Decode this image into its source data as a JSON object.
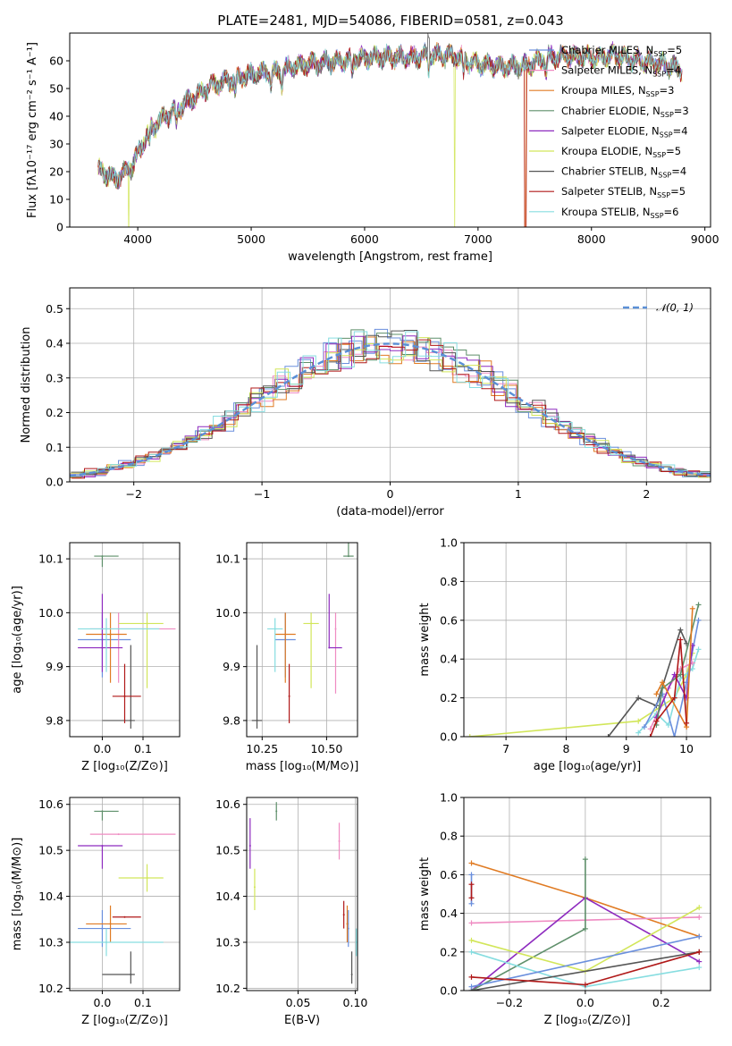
{
  "figure_title": "PLATE=2481, MJD=54086, FIBERID=0581, z=0.043",
  "colors": {
    "chabrier_miles": "#6a8fdd",
    "salpeter_miles": "#ef8bc2",
    "kroupa_miles": "#e07b23",
    "chabrier_elodie": "#5e8f6a",
    "salpeter_elodie": "#8e2bbf",
    "kroupa_elodie": "#d2e65a",
    "chabrier_stelib": "#555555",
    "salpeter_stelib": "#b01818",
    "kroupa_stelib": "#86dde0",
    "normal": "#5a8fd6"
  },
  "chart_data": [
    {
      "id": "spectrum",
      "type": "line",
      "title": "PLATE=2481, MJD=54086, FIBERID=0581, z=0.043",
      "xlabel": "wavelength [Angstrom, rest frame]",
      "ylabel": "Flux [fλ10⁻¹⁷ erg cm⁻² s⁻¹ A⁻¹]",
      "xlim": [
        3400,
        9050
      ],
      "ylim": [
        0,
        70
      ],
      "xticks": [
        4000,
        5000,
        6000,
        7000,
        8000,
        9000
      ],
      "yticks": [
        0,
        10,
        20,
        30,
        40,
        50,
        60
      ],
      "legend_position": "upper-right",
      "series": [
        {
          "name": "Chabrier MILES, N_SSP=5",
          "color": "#6a8fdd"
        },
        {
          "name": "Salpeter MILES, N_SSP=4",
          "color": "#ef8bc2"
        },
        {
          "name": "Kroupa MILES, N_SSP=3",
          "color": "#e07b23"
        },
        {
          "name": "Chabrier ELODIE, N_SSP=3",
          "color": "#5e8f6a"
        },
        {
          "name": "Salpeter ELODIE, N_SSP=4",
          "color": "#8e2bbf"
        },
        {
          "name": "Kroupa ELODIE, N_SSP=5",
          "color": "#d2e65a"
        },
        {
          "name": "Chabrier STELIB, N_SSP=4",
          "color": "#555555"
        },
        {
          "name": "Salpeter STELIB, N_SSP=5",
          "color": "#b01818"
        },
        {
          "name": "Kroupa STELIB, N_SSP=6",
          "color": "#86dde0"
        }
      ],
      "continuum": {
        "x": [
          3650,
          3800,
          3950,
          4100,
          4250,
          4400,
          4600,
          4800,
          5000,
          5200,
          5400,
          5600,
          5800,
          6000,
          6200,
          6400,
          6600,
          6800,
          7000,
          7200,
          7400,
          7600,
          7800,
          8000,
          8200,
          8400,
          8600,
          8800
        ],
        "y": [
          21,
          17,
          22,
          35,
          40,
          44,
          50,
          53,
          55,
          56,
          58,
          59,
          60,
          61,
          61.5,
          61,
          62,
          61.5,
          59,
          58,
          58,
          61,
          62,
          61,
          62,
          60,
          59,
          57
        ]
      },
      "cutoffs": {
        "kroupa_elodie_start": 3920,
        "kroupa_elodie_end": 6790,
        "salpeter_stelib_end": 7420
      }
    },
    {
      "id": "residuals",
      "type": "step",
      "xlabel": "(data-model)/error",
      "ylabel": "Normed distribution",
      "xlim": [
        -2.5,
        2.5
      ],
      "ylim": [
        0,
        0.56
      ],
      "xticks": [
        -2,
        -1,
        0,
        1,
        2
      ],
      "yticks": [
        0.0,
        0.1,
        0.2,
        0.3,
        0.4,
        0.5
      ],
      "legend_label": "𝒩(0, 1)",
      "legend_position": "upper-right",
      "curve": "normal(0,1)"
    },
    {
      "id": "age_vs_Z",
      "type": "errorbar",
      "xlabel": "Z [log₁₀(Z/Z⊙)]",
      "ylabel": "age  [log₁₀(age/yr)]",
      "xlim": [
        -0.08,
        0.19
      ],
      "ylim": [
        9.77,
        10.13
      ],
      "xticks": [
        0.0,
        0.1
      ],
      "yticks": [
        9.8,
        9.9,
        10.0,
        10.1
      ],
      "points": [
        {
          "x": 0.0,
          "y": 9.95,
          "xe": [
            0.06,
            0.07
          ],
          "ye": [
            0.07,
            0.05
          ],
          "color": "#6a8fdd"
        },
        {
          "x": 0.04,
          "y": 9.97,
          "xe": [
            0.07,
            0.14
          ],
          "ye": [
            0.1,
            0.03
          ],
          "color": "#ef8bc2"
        },
        {
          "x": 0.02,
          "y": 9.96,
          "xe": [
            0.06,
            0.04
          ],
          "ye": [
            0.09,
            0.04
          ],
          "color": "#e07b23"
        },
        {
          "x": 0.0,
          "y": 10.105,
          "xe": [
            0.02,
            0.04
          ],
          "ye": [
            0.02,
            0.0
          ],
          "color": "#5e8f6a"
        },
        {
          "x": 0.0,
          "y": 9.935,
          "xe": [
            0.06,
            0.05
          ],
          "ye": [
            0.045,
            0.1
          ],
          "color": "#8e2bbf"
        },
        {
          "x": 0.11,
          "y": 9.98,
          "xe": [
            0.07,
            0.04
          ],
          "ye": [
            0.12,
            0.02
          ],
          "color": "#d2e65a"
        },
        {
          "x": 0.07,
          "y": 9.8,
          "xe": [
            0.07,
            0.01
          ],
          "ye": [
            0.015,
            0.14
          ],
          "color": "#555555"
        },
        {
          "x": 0.055,
          "y": 9.845,
          "xe": [
            0.03,
            0.04
          ],
          "ye": [
            0.05,
            0.06
          ],
          "color": "#b01818"
        },
        {
          "x": 0.01,
          "y": 9.97,
          "xe": [
            0.07,
            0.13
          ],
          "ye": [
            0.08,
            0.02
          ],
          "color": "#86dde0"
        }
      ]
    },
    {
      "id": "age_vs_mass",
      "type": "errorbar",
      "xlabel": "mass [log₁₀(M/M⊙)]",
      "ylabel": "",
      "xlim": [
        10.19,
        10.62
      ],
      "ylim": [
        9.77,
        10.13
      ],
      "xticks": [
        10.25,
        10.5
      ],
      "yticks": [
        9.8,
        9.9,
        10.0,
        10.1
      ],
      "points": [
        {
          "x": 10.34,
          "y": 9.95,
          "xe": [
            0.04,
            0.04
          ],
          "ye": [
            0.07,
            0.05
          ],
          "color": "#6a8fdd"
        },
        {
          "x": 10.535,
          "y": 9.97,
          "xe": [
            0.0,
            0.0
          ],
          "ye": [
            0.12,
            0.03
          ],
          "color": "#ef8bc2"
        },
        {
          "x": 10.34,
          "y": 9.96,
          "xe": [
            0.04,
            0.04
          ],
          "ye": [
            0.09,
            0.04
          ],
          "color": "#e07b23"
        },
        {
          "x": 10.585,
          "y": 10.105,
          "xe": [
            0.02,
            0.02
          ],
          "ye": [
            0.0,
            0.05
          ],
          "color": "#5e8f6a"
        },
        {
          "x": 10.51,
          "y": 9.935,
          "xe": [
            0.0,
            0.05
          ],
          "ye": [
            0.0,
            0.1
          ],
          "color": "#8e2bbf"
        },
        {
          "x": 10.44,
          "y": 9.98,
          "xe": [
            0.03,
            0.03
          ],
          "ye": [
            0.12,
            0.02
          ],
          "color": "#d2e65a"
        },
        {
          "x": 10.23,
          "y": 9.8,
          "xe": [
            0.02,
            0.02
          ],
          "ye": [
            0.015,
            0.14
          ],
          "color": "#555555"
        },
        {
          "x": 10.355,
          "y": 9.845,
          "xe": [
            0.0,
            0.0
          ],
          "ye": [
            0.05,
            0.06
          ],
          "color": "#b01818"
        },
        {
          "x": 10.3,
          "y": 9.97,
          "xe": [
            0.03,
            0.03
          ],
          "ye": [
            0.08,
            0.02
          ],
          "color": "#86dde0"
        }
      ]
    },
    {
      "id": "weight_vs_age",
      "type": "line",
      "xlabel": "age  [log₁₀(age/yr)]",
      "ylabel": "mass weight",
      "xlim": [
        6.3,
        10.4
      ],
      "ylim": [
        0,
        1
      ],
      "xticks": [
        7,
        8,
        9,
        10
      ],
      "yticks": [
        0.0,
        0.2,
        0.4,
        0.6,
        0.8,
        1.0
      ],
      "series": [
        {
          "color": "#d2e65a",
          "x": [
            6.4,
            9.2,
            9.8,
            10.0,
            10.1
          ],
          "y": [
            0.0,
            0.08,
            0.2,
            0.32,
            0.43
          ]
        },
        {
          "color": "#555555",
          "x": [
            8.7,
            9.2,
            9.5,
            9.9,
            10.0
          ],
          "y": [
            0.0,
            0.2,
            0.16,
            0.55,
            0.48
          ]
        },
        {
          "color": "#86dde0",
          "x": [
            9.2,
            9.5,
            9.7,
            9.9,
            10.1,
            10.2
          ],
          "y": [
            0.02,
            0.12,
            0.06,
            0.3,
            0.35,
            0.45
          ]
        },
        {
          "color": "#6a8fdd",
          "x": [
            9.3,
            9.6,
            9.8,
            10.0,
            10.2
          ],
          "y": [
            0.05,
            0.22,
            0.0,
            0.28,
            0.6
          ]
        },
        {
          "color": "#ef8bc2",
          "x": [
            9.4,
            9.7,
            9.9,
            10.1
          ],
          "y": [
            0.04,
            0.25,
            0.35,
            0.38
          ]
        },
        {
          "color": "#8e2bbf",
          "x": [
            9.5,
            9.8,
            10.0,
            10.1
          ],
          "y": [
            0.1,
            0.32,
            0.2,
            0.47
          ]
        },
        {
          "color": "#5e8f6a",
          "x": [
            9.5,
            9.6,
            9.9,
            10.2
          ],
          "y": [
            0.06,
            0.25,
            0.32,
            0.68
          ]
        },
        {
          "color": "#e07b23",
          "x": [
            9.5,
            9.6,
            10.0,
            10.1
          ],
          "y": [
            0.22,
            0.28,
            0.05,
            0.66
          ]
        },
        {
          "color": "#b01818",
          "x": [
            9.4,
            9.5,
            9.8,
            9.9,
            10.0
          ],
          "y": [
            0.0,
            0.08,
            0.2,
            0.5,
            0.07
          ]
        }
      ]
    },
    {
      "id": "mass_vs_Z",
      "type": "errorbar",
      "xlabel": "Z [log₁₀(Z/Z⊙)]",
      "ylabel": "mass [log₁₀(M/M⊙)]",
      "xlim": [
        -0.08,
        0.19
      ],
      "ylim": [
        10.195,
        10.615
      ],
      "xticks": [
        0.0,
        0.1
      ],
      "yticks": [
        10.2,
        10.3,
        10.4,
        10.5,
        10.6
      ],
      "points": [
        {
          "x": 0.0,
          "y": 10.33,
          "xe": [
            0.06,
            0.07
          ],
          "ye": [
            0.04,
            0.04
          ],
          "color": "#6a8fdd"
        },
        {
          "x": 0.04,
          "y": 10.535,
          "xe": [
            0.07,
            0.14
          ],
          "ye": [
            0.0,
            0.0
          ],
          "color": "#ef8bc2"
        },
        {
          "x": 0.02,
          "y": 10.34,
          "xe": [
            0.06,
            0.04
          ],
          "ye": [
            0.04,
            0.04
          ],
          "color": "#e07b23"
        },
        {
          "x": 0.0,
          "y": 10.585,
          "xe": [
            0.02,
            0.04
          ],
          "ye": [
            0.02,
            0.0
          ],
          "color": "#5e8f6a"
        },
        {
          "x": 0.0,
          "y": 10.51,
          "xe": [
            0.06,
            0.05
          ],
          "ye": [
            0.05,
            0.0
          ],
          "color": "#8e2bbf"
        },
        {
          "x": 0.11,
          "y": 10.44,
          "xe": [
            0.07,
            0.04
          ],
          "ye": [
            0.03,
            0.03
          ],
          "color": "#d2e65a"
        },
        {
          "x": 0.07,
          "y": 10.23,
          "xe": [
            0.07,
            0.01
          ],
          "ye": [
            0.02,
            0.05
          ],
          "color": "#555555"
        },
        {
          "x": 0.055,
          "y": 10.355,
          "xe": [
            0.03,
            0.04
          ],
          "ye": [
            0.0,
            0.0
          ],
          "color": "#b01818"
        },
        {
          "x": 0.01,
          "y": 10.3,
          "xe": [
            0.09,
            0.14
          ],
          "ye": [
            0.03,
            0.03
          ],
          "color": "#86dde0"
        }
      ]
    },
    {
      "id": "mass_vs_ebv",
      "type": "errorbar",
      "xlabel": "E(B-V)",
      "ylabel": "",
      "xlim": [
        0.005,
        0.102
      ],
      "ylim": [
        10.195,
        10.615
      ],
      "xticks": [
        0.05,
        0.1
      ],
      "yticks": [
        10.2,
        10.3,
        10.4,
        10.5,
        10.6
      ],
      "points": [
        {
          "x": 0.094,
          "y": 10.33,
          "xe": [
            0,
            0
          ],
          "ye": [
            0.04,
            0.04
          ],
          "color": "#6a8fdd"
        },
        {
          "x": 0.086,
          "y": 10.52,
          "xe": [
            0,
            0
          ],
          "ye": [
            0.04,
            0.04
          ],
          "color": "#ef8bc2"
        },
        {
          "x": 0.093,
          "y": 10.34,
          "xe": [
            0,
            0
          ],
          "ye": [
            0.04,
            0.04
          ],
          "color": "#e07b23"
        },
        {
          "x": 0.031,
          "y": 10.585,
          "xe": [
            0,
            0
          ],
          "ye": [
            0.02,
            0.02
          ],
          "color": "#5e8f6a"
        },
        {
          "x": 0.008,
          "y": 10.51,
          "xe": [
            0,
            0
          ],
          "ye": [
            0.05,
            0.06
          ],
          "color": "#8e2bbf"
        },
        {
          "x": 0.012,
          "y": 10.42,
          "xe": [
            0,
            0
          ],
          "ye": [
            0.05,
            0.04
          ],
          "color": "#d2e65a"
        },
        {
          "x": 0.097,
          "y": 10.23,
          "xe": [
            0,
            0
          ],
          "ye": [
            0.02,
            0.05
          ],
          "color": "#555555"
        },
        {
          "x": 0.09,
          "y": 10.36,
          "xe": [
            0,
            0
          ],
          "ye": [
            0.03,
            0.03
          ],
          "color": "#b01818"
        },
        {
          "x": 0.101,
          "y": 10.3,
          "xe": [
            0,
            0
          ],
          "ye": [
            0.03,
            0.03
          ],
          "color": "#86dde0"
        }
      ]
    },
    {
      "id": "weight_vs_Z",
      "type": "line",
      "xlabel": "Z [log₁₀(Z/Z⊙)]",
      "ylabel": "mass weight",
      "xlim": [
        -0.32,
        0.33
      ],
      "ylim": [
        0,
        1
      ],
      "xticks": [
        -0.2,
        0.0,
        0.2
      ],
      "yticks": [
        0.0,
        0.2,
        0.4,
        0.6,
        0.8,
        1.0
      ],
      "series": [
        {
          "color": "#e07b23",
          "x": [
            -0.3,
            0.0,
            0.3
          ],
          "y": [
            0.66,
            0.48,
            0.28
          ]
        },
        {
          "color": "#ef8bc2",
          "x": [
            -0.3,
            0.3
          ],
          "y": [
            0.35,
            0.38
          ]
        },
        {
          "color": "#8e2bbf",
          "x": [
            -0.3,
            0.0,
            0.3
          ],
          "y": [
            0.0,
            0.48,
            0.15
          ]
        },
        {
          "color": "#5e8f6a",
          "x": [
            -0.3,
            0.0,
            0.0
          ],
          "y": [
            0.0,
            0.32,
            0.68
          ]
        },
        {
          "color": "#d2e65a",
          "x": [
            -0.3,
            0.0,
            0.3
          ],
          "y": [
            0.26,
            0.1,
            0.43
          ]
        },
        {
          "color": "#86dde0",
          "x": [
            -0.3,
            0.0,
            0.3
          ],
          "y": [
            0.2,
            0.02,
            0.12
          ]
        },
        {
          "color": "#555555",
          "x": [
            -0.3,
            0.3
          ],
          "y": [
            0.0,
            0.2
          ]
        },
        {
          "color": "#6a8fdd",
          "x": [
            -0.3,
            0.3
          ],
          "y": [
            0.02,
            0.28
          ]
        },
        {
          "color": "#b01818",
          "x": [
            -0.3,
            0.0,
            0.3
          ],
          "y": [
            0.07,
            0.03,
            0.2
          ]
        },
        {
          "color": "#6a8fdd",
          "x": [
            -0.3,
            -0.3
          ],
          "y": [
            0.45,
            0.6
          ]
        },
        {
          "color": "#b01818",
          "x": [
            -0.3,
            -0.3
          ],
          "y": [
            0.48,
            0.55
          ]
        }
      ]
    }
  ]
}
